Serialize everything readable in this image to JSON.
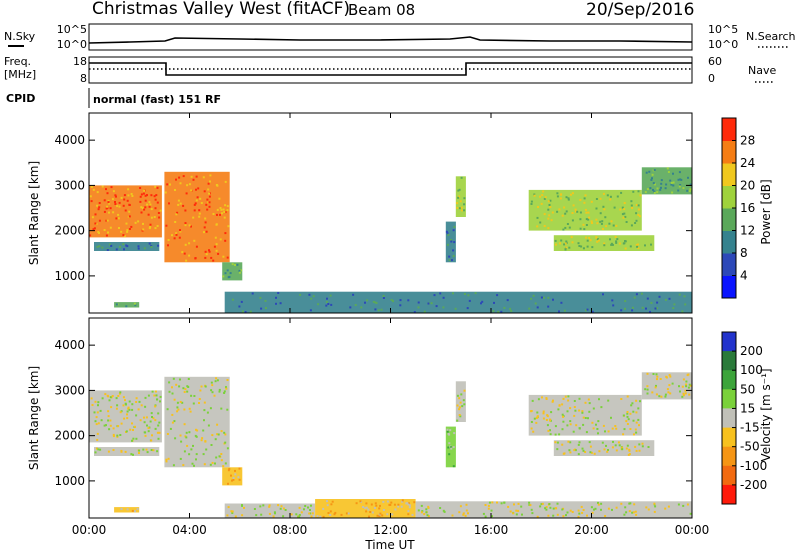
{
  "header": {
    "title": "Christmas Valley West (fitACF)",
    "beam": "Beam 08",
    "date": "20/Sep/2016"
  },
  "side_labels": {
    "nsky": "N.Sky",
    "nsearch": "N.Search",
    "freq_line1": "Freq.",
    "freq_line2": "[MHz]",
    "nave": "Nave",
    "cpid": "CPID",
    "cpid_value": "normal (fast) 151 RF"
  },
  "noise_panel": {
    "left_ticks": [
      "10^5",
      "10^0"
    ],
    "right_ticks": [
      "10^5",
      "10^0"
    ]
  },
  "freq_panel": {
    "left_ticks": [
      "18",
      "8"
    ],
    "right_ticks": [
      "60",
      "0"
    ]
  },
  "chart_data": [
    {
      "type": "heatmap",
      "panel": "power",
      "ylabel": "Slant Range [km]",
      "xlabel": "",
      "x_ticks": [
        "00:00",
        "04:00",
        "08:00",
        "12:00",
        "16:00",
        "20:00",
        "00:00"
      ],
      "y_ticks": [
        "1000",
        "2000",
        "3000",
        "4000"
      ],
      "xlim_hours": [
        0,
        24
      ],
      "ylim_km": [
        180,
        4600
      ],
      "colorbar": {
        "label": "Power [dB]",
        "ticks": [
          "4",
          "8",
          "12",
          "16",
          "20",
          "24",
          "28"
        ],
        "range": [
          0,
          30
        ],
        "colors": [
          "#0a14ff",
          "#2c48b8",
          "#35828e",
          "#5aa85a",
          "#9fd23c",
          "#f0c81e",
          "#f57d14",
          "#ff2a0a"
        ]
      },
      "regions": [
        {
          "t0": 0.0,
          "t1": 2.9,
          "r0": 1850,
          "r1": 3000,
          "power": 26
        },
        {
          "t0": 3.0,
          "t1": 5.6,
          "r0": 1300,
          "r1": 3300,
          "power": 26
        },
        {
          "t0": 0.2,
          "t1": 2.8,
          "r0": 1550,
          "r1": 1750,
          "power": 11
        },
        {
          "t0": 5.3,
          "t1": 6.1,
          "r0": 900,
          "r1": 1300,
          "power": 12
        },
        {
          "t0": 14.2,
          "t1": 14.6,
          "r0": 1300,
          "r1": 2200,
          "power": 11
        },
        {
          "t0": 14.6,
          "t1": 15.0,
          "r0": 2300,
          "r1": 3200,
          "power": 18
        },
        {
          "t0": 17.5,
          "t1": 22.0,
          "r0": 2000,
          "r1": 2900,
          "power": 15
        },
        {
          "t0": 18.5,
          "t1": 22.5,
          "r0": 1550,
          "r1": 1900,
          "power": 15
        },
        {
          "t0": 22.0,
          "t1": 24.0,
          "r0": 2800,
          "r1": 3400,
          "power": 14
        },
        {
          "t0": 1.0,
          "t1": 2.0,
          "r0": 300,
          "r1": 420,
          "power": 12
        },
        {
          "t0": 5.4,
          "t1": 24.0,
          "r0": 180,
          "r1": 650,
          "power": 10
        }
      ]
    },
    {
      "type": "heatmap",
      "panel": "velocity",
      "ylabel": "Slant Range [km]",
      "xlabel": "Time UT",
      "x_ticks": [
        "00:00",
        "04:00",
        "08:00",
        "12:00",
        "16:00",
        "20:00",
        "00:00"
      ],
      "y_ticks": [
        "1000",
        "2000",
        "3000",
        "4000"
      ],
      "xlim_hours": [
        0,
        24
      ],
      "ylim_km": [
        180,
        4600
      ],
      "colorbar": {
        "label": "Velocity [m s⁻¹]",
        "ticks": [
          "200",
          "100",
          "50",
          "15",
          "-15",
          "-50",
          "-100",
          "-200"
        ],
        "range": [
          -250,
          250
        ],
        "colors": [
          "#2233cc",
          "#2a7a3a",
          "#3ca43a",
          "#7ad13a",
          "#c0c0b8",
          "#f7c11e",
          "#f59514",
          "#f26a10",
          "#ff1a0a"
        ]
      },
      "regions": [
        {
          "t0": 0.0,
          "t1": 2.9,
          "r0": 1850,
          "r1": 3000,
          "velocity": 0
        },
        {
          "t0": 3.0,
          "t1": 5.6,
          "r0": 1300,
          "r1": 3300,
          "velocity": 0
        },
        {
          "t0": 0.2,
          "t1": 2.8,
          "r0": 1550,
          "r1": 1750,
          "velocity": 0
        },
        {
          "t0": 5.3,
          "t1": 6.1,
          "r0": 900,
          "r1": 1300,
          "velocity": -70
        },
        {
          "t0": 14.2,
          "t1": 14.6,
          "r0": 1300,
          "r1": 2200,
          "velocity": 40
        },
        {
          "t0": 14.6,
          "t1": 15.0,
          "r0": 2300,
          "r1": 3200,
          "velocity": -20
        },
        {
          "t0": 17.5,
          "t1": 22.0,
          "r0": 2000,
          "r1": 2900,
          "velocity": 0
        },
        {
          "t0": 18.5,
          "t1": 22.5,
          "r0": 1550,
          "r1": 1900,
          "velocity": 0
        },
        {
          "t0": 22.0,
          "t1": 24.0,
          "r0": 2800,
          "r1": 3400,
          "velocity": 0
        },
        {
          "t0": 1.0,
          "t1": 2.0,
          "r0": 300,
          "r1": 420,
          "velocity": -40
        },
        {
          "t0": 5.4,
          "t1": 9.0,
          "r0": 180,
          "r1": 500,
          "velocity": 25
        },
        {
          "t0": 9.0,
          "t1": 13.0,
          "r0": 180,
          "r1": 600,
          "velocity": -40
        },
        {
          "t0": 13.0,
          "t1": 24.0,
          "r0": 180,
          "r1": 550,
          "velocity": 25
        }
      ]
    }
  ]
}
